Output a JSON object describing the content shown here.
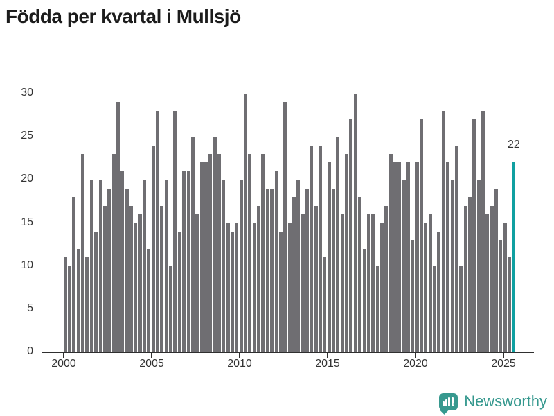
{
  "title": "Födda per kvartal i Mullsjö",
  "chart_data": {
    "type": "bar",
    "frequency": "quarterly",
    "start_year": 2000,
    "values": [
      11,
      10,
      18,
      12,
      23,
      11,
      20,
      14,
      20,
      17,
      19,
      23,
      29,
      21,
      19,
      17,
      15,
      16,
      20,
      12,
      24,
      28,
      17,
      20,
      10,
      28,
      14,
      21,
      21,
      25,
      16,
      22,
      22,
      23,
      25,
      23,
      20,
      15,
      14,
      15,
      20,
      30,
      23,
      15,
      17,
      23,
      19,
      19,
      21,
      14,
      29,
      15,
      18,
      20,
      16,
      19,
      24,
      17,
      24,
      11,
      22,
      19,
      25,
      16,
      23,
      27,
      30,
      18,
      12,
      16,
      16,
      10,
      15,
      17,
      23,
      22,
      22,
      20,
      22,
      13,
      22,
      27,
      15,
      16,
      10,
      14,
      28,
      22,
      20,
      24,
      10,
      17,
      18,
      27,
      20,
      28,
      16,
      17,
      19,
      13,
      15,
      11,
      22
    ],
    "highlight": {
      "index": 102,
      "value": 22,
      "label": "22",
      "color": "#10a0a1"
    },
    "bar_color": "#6f6e72",
    "xticks": [
      "2000",
      "2005",
      "2010",
      "2015",
      "2020",
      "2025"
    ],
    "yticks": [
      "0",
      "5",
      "10",
      "15",
      "20",
      "25",
      "30"
    ],
    "ylim": [
      0,
      30
    ],
    "grid": "horizontal",
    "legend": "none"
  },
  "footer": {
    "brand": "Newsworthy"
  }
}
